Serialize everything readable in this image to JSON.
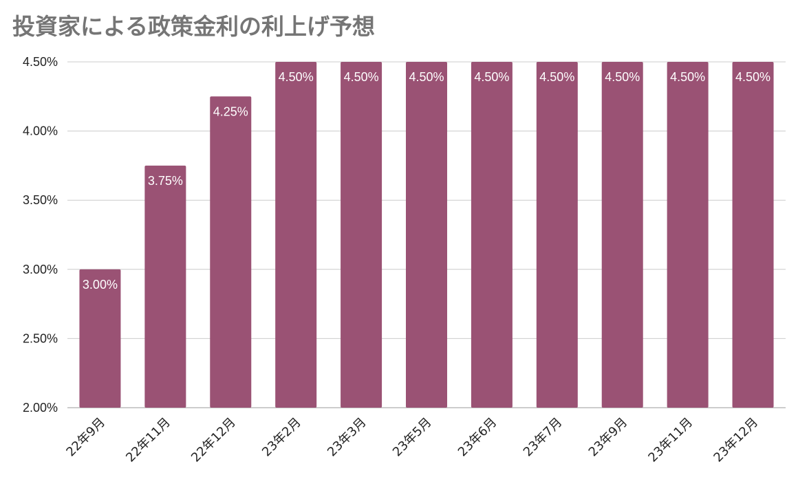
{
  "chart_data": {
    "type": "bar",
    "title": "投資家による政策金利の利上げ予想",
    "xlabel": "",
    "ylabel": "",
    "categories": [
      "22年9月",
      "22年11月",
      "22年12月",
      "23年2月",
      "23年3月",
      "23年5月",
      "23年6月",
      "23年7月",
      "23年9月",
      "23年11月",
      "23年12月"
    ],
    "values": [
      3.0,
      3.75,
      4.25,
      4.5,
      4.5,
      4.5,
      4.5,
      4.5,
      4.5,
      4.5,
      4.5
    ],
    "data_labels": [
      "3.00%",
      "3.75%",
      "4.25%",
      "4.50%",
      "4.50%",
      "4.50%",
      "4.50%",
      "4.50%",
      "4.50%",
      "4.50%",
      "4.50%"
    ],
    "ylim": [
      2.0,
      4.5
    ],
    "yticks": [
      {
        "value": 2.0,
        "label": "2.00%"
      },
      {
        "value": 2.5,
        "label": "2.50%"
      },
      {
        "value": 3.0,
        "label": "3.00%"
      },
      {
        "value": 3.5,
        "label": "3.50%"
      },
      {
        "value": 4.0,
        "label": "4.00%"
      },
      {
        "value": 4.5,
        "label": "4.50%"
      }
    ],
    "grid": true,
    "legend": "none",
    "colors": {
      "bar": "#9a5274",
      "grid": "#cccccc",
      "title": "#757575"
    }
  }
}
